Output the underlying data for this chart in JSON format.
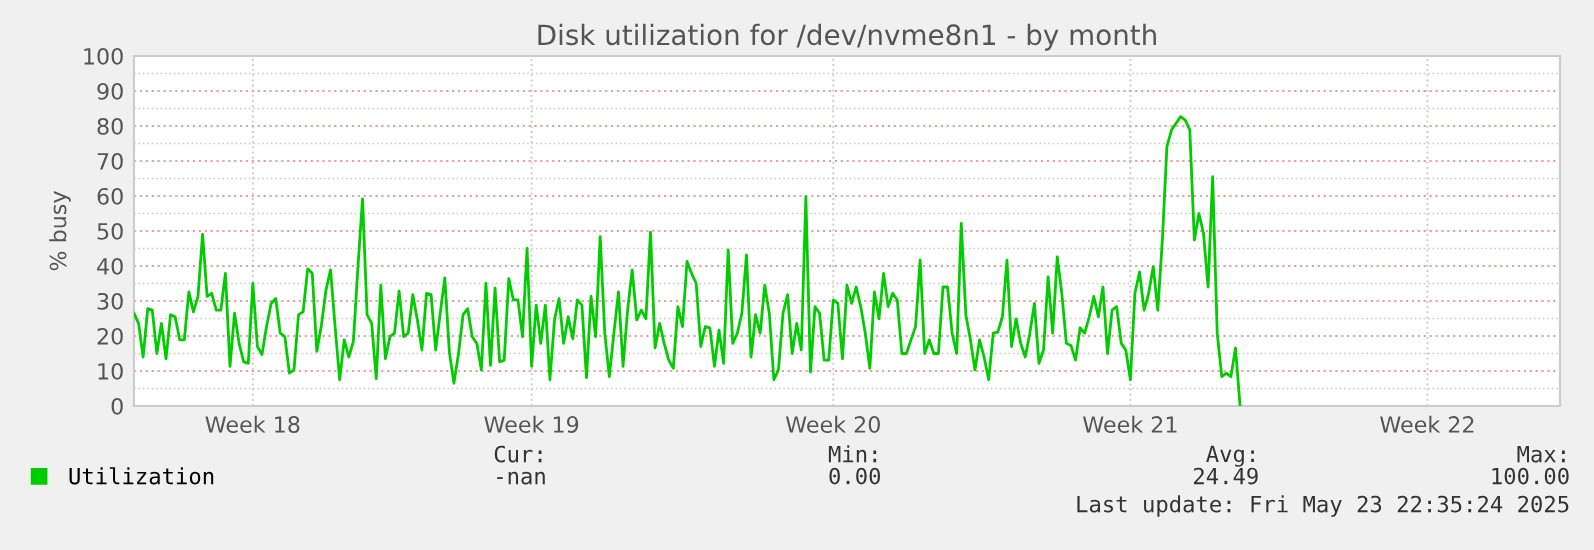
{
  "chart_data": {
    "type": "line",
    "title": "Disk utilization for /dev/nvme8n1 - by month",
    "ylabel": "% busy",
    "categories": [
      null,
      null,
      null,
      null,
      null,
      null,
      null,
      null,
      null,
      null,
      null,
      null,
      null,
      null,
      null,
      null,
      null,
      null,
      null,
      null,
      null,
      null,
      null,
      null,
      null,
      null,
      "Week 18",
      null,
      null,
      null,
      null,
      null,
      null,
      null,
      null,
      null,
      null,
      null,
      null,
      null,
      null,
      null,
      null,
      null,
      null,
      null,
      null,
      null,
      null,
      null,
      null,
      null,
      null,
      null,
      null,
      null,
      null,
      null,
      null,
      null,
      null,
      null,
      null,
      null,
      null,
      null,
      null,
      null,
      null,
      null,
      null,
      null,
      null,
      null,
      null,
      null,
      null,
      null,
      null,
      null,
      null,
      null,
      null,
      null,
      null,
      null,
      null,
      "Week 19",
      null,
      null,
      null,
      null,
      null,
      null,
      null,
      null,
      null,
      null,
      null,
      null,
      null,
      null,
      null,
      null,
      null,
      null,
      null,
      null,
      null,
      null,
      null,
      null,
      null,
      null,
      null,
      null,
      null,
      null,
      null,
      null,
      null,
      null,
      null,
      null,
      null,
      null,
      null,
      null,
      null,
      null,
      null,
      null,
      null,
      null,
      null,
      null,
      null,
      null,
      null,
      null,
      null,
      null,
      null,
      null,
      null,
      null,
      null,
      null,
      null,
      null,
      null,
      null,
      null,
      "Week 20",
      null,
      null,
      null,
      null,
      null,
      null,
      null,
      null,
      null,
      null,
      null,
      null,
      null,
      null,
      null,
      null,
      null,
      null,
      null,
      null,
      null,
      null,
      null,
      null,
      null,
      null,
      null,
      null,
      null,
      null,
      null,
      null,
      null,
      null,
      null,
      null,
      null,
      null,
      null,
      null,
      null,
      null,
      null,
      null,
      null,
      null,
      null,
      null,
      null,
      null,
      null,
      null,
      null,
      null,
      null,
      null,
      null,
      null,
      null,
      null,
      null,
      null,
      null,
      null,
      "Week 21",
      null,
      null,
      null,
      null,
      null,
      null,
      null,
      null,
      null,
      null,
      null,
      null,
      null,
      null,
      null,
      null,
      null,
      null,
      null,
      null,
      null,
      null,
      null,
      null,
      null,
      null,
      null,
      null,
      null,
      null,
      null,
      null,
      null,
      null,
      null,
      null,
      null,
      null,
      null,
      null,
      null,
      null,
      null,
      null,
      null,
      null,
      null,
      null,
      null,
      null,
      null,
      null,
      null,
      null,
      null,
      null,
      null,
      null,
      null,
      null,
      null,
      null,
      null,
      null,
      "Week 22",
      null,
      null,
      null,
      null,
      null,
      null,
      null,
      null,
      null,
      null,
      null,
      null,
      null,
      null,
      null,
      null,
      null,
      null,
      null,
      null,
      null,
      null,
      null,
      null,
      null,
      null,
      null,
      null,
      null
    ],
    "ylim": [
      0,
      100
    ],
    "yticks": [
      0,
      10,
      20,
      30,
      40,
      50,
      60,
      70,
      80,
      90,
      100
    ],
    "grid": true,
    "legend": "bottom left",
    "marker": "none",
    "line_style": "solid",
    "annotations": [
      "Cur:",
      "-nan",
      "Min:",
      "0.00",
      "Avg:",
      "24.49",
      "Max:",
      "100.00",
      "Last update: Fri May 23 22:35:24 2025"
    ],
    "series": [
      {
        "name": "Utilization",
        "color": "#00cc00",
        "values": [
          26.5,
          23.6,
          14.0,
          27.8,
          27.4,
          15.0,
          23.6,
          13.5,
          26.1,
          25.5,
          18.9,
          18.9,
          32.6,
          26.9,
          31.3,
          49.0,
          31.3,
          32.2,
          27.4,
          27.4,
          37.9,
          11.3,
          26.5,
          17.9,
          12.6,
          12.2,
          35.0,
          17.0,
          14.7,
          22.7,
          29.3,
          30.7,
          20.8,
          19.8,
          9.4,
          10.3,
          26.1,
          26.9,
          39.2,
          37.9,
          15.6,
          23.0,
          33.1,
          38.9,
          22.7,
          7.5,
          18.9,
          14.0,
          18.5,
          39.8,
          59.2,
          26.1,
          23.6,
          7.8,
          34.5,
          13.5,
          19.8,
          20.8,
          32.8,
          19.8,
          20.8,
          31.8,
          24.6,
          16.0,
          32.2,
          31.8,
          16.0,
          26.5,
          36.6,
          15.4,
          6.5,
          15.0,
          26.1,
          27.8,
          19.8,
          17.9,
          10.3,
          35.0,
          11.6,
          33.7,
          12.6,
          13.1,
          36.4,
          30.3,
          30.3,
          19.8,
          45.0,
          11.3,
          28.8,
          17.9,
          28.8,
          7.5,
          24.6,
          30.7,
          17.9,
          25.5,
          19.2,
          30.3,
          28.8,
          8.1,
          31.3,
          19.8,
          48.4,
          20.8,
          8.4,
          20.8,
          32.6,
          11.3,
          27.4,
          38.9,
          24.6,
          27.4,
          24.9,
          49.7,
          16.6,
          23.6,
          17.9,
          13.1,
          10.8,
          28.4,
          22.7,
          41.3,
          37.9,
          35.0,
          17.0,
          22.7,
          22.3,
          11.3,
          21.7,
          12.2,
          44.6,
          17.9,
          20.8,
          26.5,
          43.2,
          14.0,
          26.1,
          20.8,
          34.5,
          26.5,
          7.5,
          10.3,
          26.5,
          31.8,
          15.0,
          23.6,
          16.0,
          59.8,
          9.7,
          28.4,
          26.5,
          13.1,
          13.1,
          30.3,
          29.3,
          13.5,
          34.5,
          29.3,
          34.0,
          28.4,
          20.8,
          10.8,
          32.6,
          24.9,
          37.9,
          28.4,
          32.2,
          30.3,
          15.0,
          15.0,
          18.9,
          22.7,
          41.7,
          15.0,
          18.9,
          15.0,
          15.0,
          34.0,
          34.0,
          20.8,
          15.0,
          52.2,
          26.1,
          18.9,
          10.3,
          18.9,
          14.0,
          7.5,
          20.8,
          21.1,
          25.5,
          41.7,
          17.0,
          24.9,
          17.9,
          14.0,
          20.8,
          29.3,
          12.2,
          16.0,
          36.9,
          20.8,
          42.6,
          32.2,
          17.9,
          17.3,
          13.1,
          22.3,
          20.8,
          25.5,
          31.3,
          25.5,
          34.0,
          15.0,
          27.4,
          28.4,
          17.9,
          16.0,
          7.5,
          32.2,
          38.3,
          27.4,
          32.2,
          39.8,
          27.4,
          47.4,
          74.1,
          78.9,
          80.8,
          82.7,
          81.7,
          78.9,
          47.4,
          55.0,
          49.3,
          34.0,
          65.5,
          20.8,
          8.4,
          9.4,
          8.4,
          16.6,
          0,
          null,
          null,
          null,
          null,
          null,
          null,
          null,
          null,
          null,
          null,
          null,
          null,
          null,
          null,
          null,
          null,
          null,
          null,
          null,
          null,
          null,
          null,
          null,
          null,
          null,
          null,
          null,
          null,
          null,
          null,
          null,
          null,
          null,
          null,
          null,
          null,
          null,
          null,
          null,
          null,
          null,
          null,
          null,
          null,
          null,
          null,
          null,
          null,
          null,
          null,
          null,
          null,
          null,
          null,
          null,
          null,
          null,
          null,
          null,
          null,
          null,
          null,
          null,
          null,
          null,
          null,
          null,
          null,
          null,
          null
        ]
      }
    ]
  }
}
